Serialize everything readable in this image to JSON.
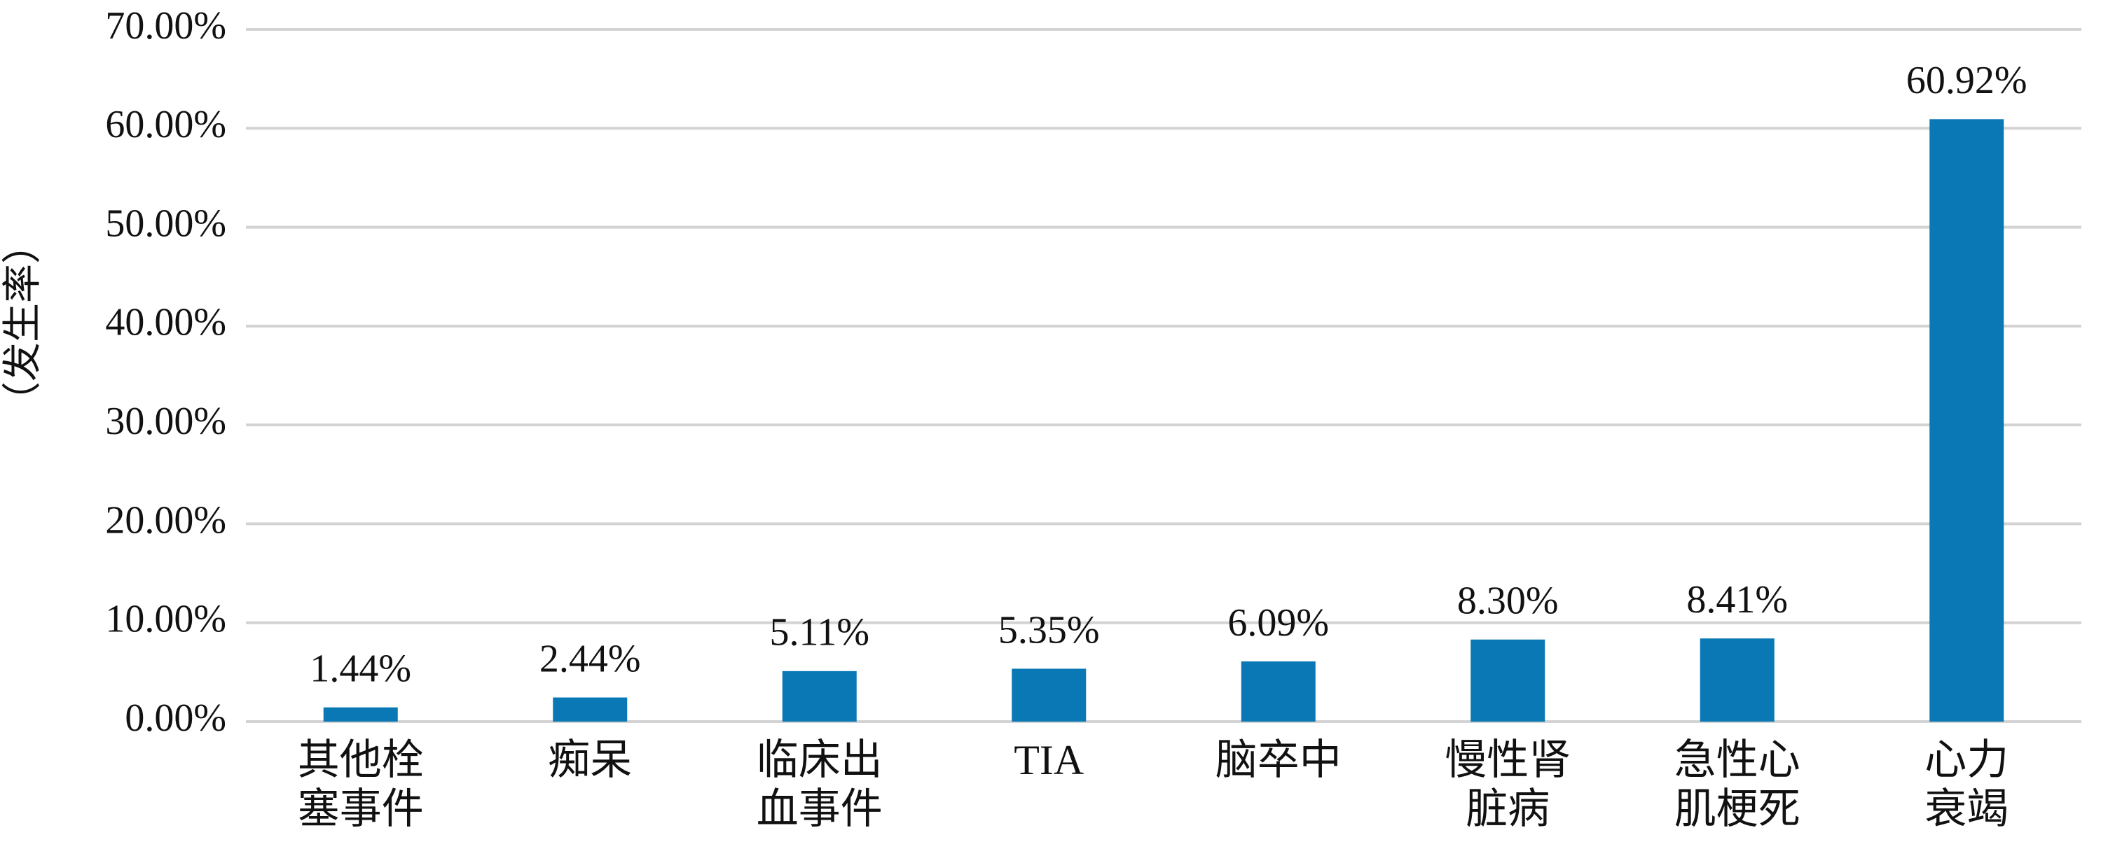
{
  "chart_data": {
    "type": "bar",
    "y_label": "（发生率）",
    "categories": [
      [
        "其他栓",
        "塞事件"
      ],
      [
        "痴呆"
      ],
      [
        "临床出",
        "血事件"
      ],
      [
        "TIA"
      ],
      [
        "脑卒中"
      ],
      [
        "慢性肾",
        "脏病"
      ],
      [
        "急性心",
        "肌梗死"
      ],
      [
        "心力",
        "衰竭"
      ]
    ],
    "values": [
      1.44,
      2.44,
      5.11,
      5.35,
      6.09,
      8.3,
      8.41,
      60.92
    ],
    "value_labels": [
      "1.44%",
      "2.44%",
      "5.11%",
      "5.35%",
      "6.09%",
      "8.30%",
      "8.41%",
      "60.92%"
    ],
    "color": "#0a78b4",
    "ylim": [
      0,
      70
    ],
    "yticks": [
      {
        "value": 0,
        "label": "0.00%"
      },
      {
        "value": 10,
        "label": "10.00%"
      },
      {
        "value": 20,
        "label": "20.00%"
      },
      {
        "value": 30,
        "label": "30.00%"
      },
      {
        "value": 40,
        "label": "40.00%"
      },
      {
        "value": 50,
        "label": "50.00%"
      },
      {
        "value": 60,
        "label": "60.00%"
      },
      {
        "value": 70,
        "label": "70.00%"
      }
    ],
    "grid": true
  }
}
